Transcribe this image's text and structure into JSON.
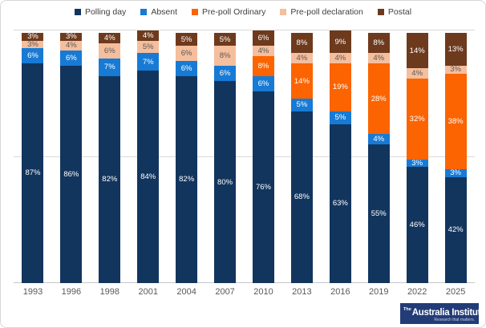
{
  "chart_data": {
    "type": "bar",
    "stacked": true,
    "categories": [
      "1993",
      "1996",
      "1998",
      "2001",
      "2004",
      "2007",
      "2010",
      "2013",
      "2016",
      "2019",
      "2022",
      "2025"
    ],
    "series": [
      {
        "name": "Polling day",
        "color": "#12355e",
        "label_color": "#ffffff",
        "values": [
          87,
          86,
          82,
          84,
          82,
          80,
          76,
          68,
          63,
          55,
          46,
          42
        ]
      },
      {
        "name": "Absent",
        "color": "#177ad5",
        "label_color": "#ffffff",
        "values": [
          6,
          6,
          7,
          7,
          6,
          6,
          6,
          5,
          5,
          4,
          3,
          3
        ]
      },
      {
        "name": "Pre-poll Ordinary",
        "color": "#fb6400",
        "label_color": "#ffffff",
        "values": [
          0,
          0,
          0,
          0,
          0,
          0,
          8,
          14,
          19,
          28,
          32,
          38
        ]
      },
      {
        "name": "Pre-poll declaration",
        "color": "#f5be9c",
        "label_color": "#595959",
        "values": [
          3,
          4,
          6,
          5,
          6,
          8,
          4,
          4,
          4,
          4,
          4,
          3
        ]
      },
      {
        "name": "Postal",
        "color": "#6e3a1d",
        "label_color": "#ffffff",
        "values": [
          3,
          3,
          4,
          4,
          5,
          5,
          6,
          8,
          9,
          8,
          14,
          13
        ]
      }
    ],
    "ylim": [
      0,
      100
    ],
    "gridlines_pct": [
      0,
      50,
      100
    ],
    "value_suffix": "%",
    "legend_position": "top",
    "title": "",
    "xlabel": "",
    "ylabel": ""
  },
  "colors": {
    "grid": "#d9d9d9",
    "axis_text": "#595959",
    "legend_text": "#404040",
    "logo_bg": "#223c77"
  },
  "logo": {
    "brand_prefix": "The",
    "brand_name": "Australia Institute",
    "tagline": "Research that matters."
  }
}
